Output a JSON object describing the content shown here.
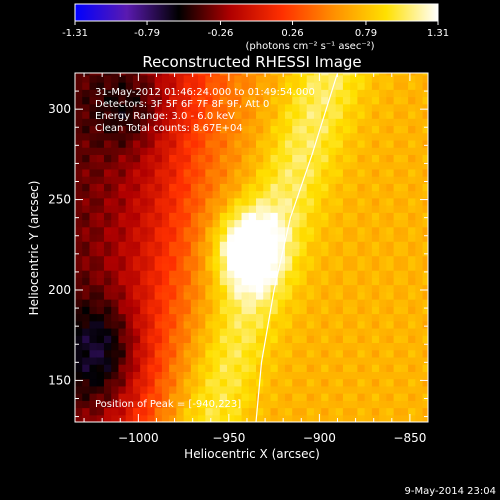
{
  "colors": {
    "background": "#000000",
    "text": "#ffffff",
    "colorbar_stops": [
      "#0000ff",
      "#5a1ab0",
      "#000000",
      "#b00000",
      "#ff3000",
      "#ff9000",
      "#ffe000",
      "#ffffff"
    ]
  },
  "chart_data": {
    "type": "heatmap",
    "title": "Reconstructed RHESSI Image",
    "xlabel": "Heliocentric X (arcsec)",
    "ylabel": "Heliocentric Y (arcsec)",
    "xlim": [
      -1035,
      -840
    ],
    "ylim": [
      127,
      320
    ],
    "xticks": [
      -1000,
      -950,
      -900,
      -850
    ],
    "yticks": [
      150,
      200,
      250,
      300
    ],
    "colorbar": {
      "min": -1.31,
      "max": 1.31,
      "ticks": [
        -1.31,
        -0.79,
        -0.26,
        0.26,
        0.79,
        1.31
      ],
      "tick_labels": [
        "-1.31",
        "-0.79",
        "-0.26",
        "0.26",
        "0.79",
        "1.31"
      ],
      "units_label": "(photons cm⁻² s⁻¹ asec⁻²)"
    },
    "annotations": {
      "time_range": "31-May-2012 01:46:24.000 to 01:49:54.000",
      "detectors": "Detectors: 3F 5F 6F 7F 8F 9F, Att 0",
      "energy_range": "Energy Range: 3.0 - 6.0 keV",
      "method": "Clean    Total counts: 8.67E+04",
      "peak_position": "Position of Peak = [-940,223]"
    },
    "peak": {
      "x": -940,
      "y": 223
    },
    "limb_curve": [
      [
        -935,
        127
      ],
      [
        -932,
        160
      ],
      [
        -925,
        200
      ],
      [
        -916,
        240
      ],
      [
        -904,
        275
      ],
      [
        -890,
        320
      ]
    ],
    "timestamp": "9-May-2014 23:04"
  }
}
